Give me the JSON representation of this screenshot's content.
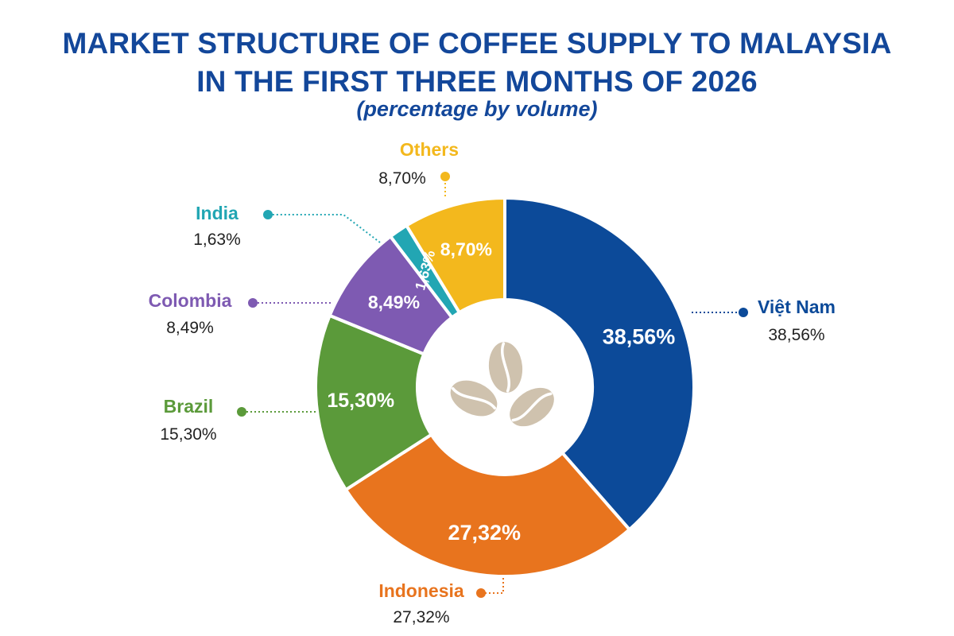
{
  "title_lines": [
    "MARKET STRUCTURE OF COFFEE SUPPLY TO MALAYSIA",
    "IN THE FIRST THREE MONTHS OF 2026"
  ],
  "subtitle": "(percentage by volume)",
  "chart_data": {
    "type": "pie",
    "title": "MARKET STRUCTURE OF COFFEE SUPPLY TO MALAYSIA IN THE FIRST THREE MONTHS OF 2026",
    "subtitle": "(percentage by volume)",
    "donut": true,
    "center_icon": "coffee-beans-icon",
    "slices": [
      {
        "name": "Việt Nam",
        "value": 38.56,
        "label": "38,56%",
        "color": "#0c4a99"
      },
      {
        "name": "Indonesia",
        "value": 27.32,
        "label": "27,32%",
        "color": "#e8741e"
      },
      {
        "name": "Brazil",
        "value": 15.3,
        "label": "15,30%",
        "color": "#5b9a3a"
      },
      {
        "name": "Colombia",
        "value": 8.49,
        "label": "8,49%",
        "color": "#7e5ab2"
      },
      {
        "name": "India",
        "value": 1.63,
        "label": "1,63%",
        "color": "#22a6b3"
      },
      {
        "name": "Others",
        "value": 8.7,
        "label": "8,70%",
        "color": "#f3b81d"
      }
    ]
  }
}
